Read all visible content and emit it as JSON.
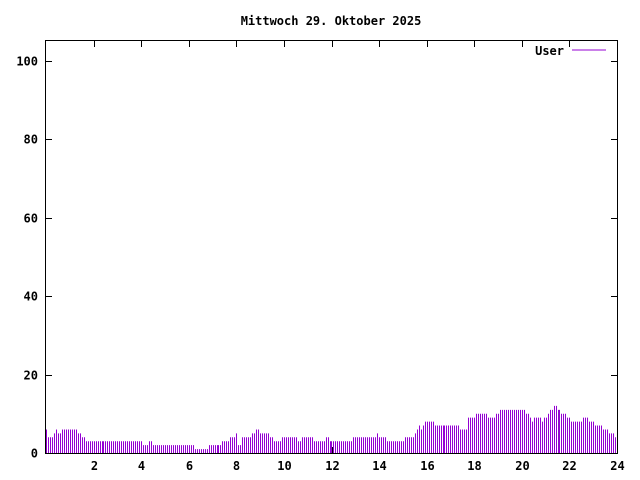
{
  "chart_data": {
    "type": "bar",
    "title": "Mittwoch 29. Oktober 2025",
    "xlabel": "",
    "ylabel": "",
    "xlim": [
      0,
      24
    ],
    "ylim": [
      0,
      105
    ],
    "x_ticks": [
      2,
      4,
      6,
      8,
      10,
      12,
      14,
      16,
      18,
      20,
      22,
      24
    ],
    "x_tick_labels": [
      "2",
      "4",
      "6",
      "8",
      "10",
      "12",
      "14",
      "16",
      "18",
      "20",
      "22",
      "24"
    ],
    "y_ticks": [
      0,
      20,
      40,
      60,
      80,
      100
    ],
    "y_tick_labels": [
      "0",
      "20",
      "40",
      "60",
      "80",
      "100"
    ],
    "grid": false,
    "legend_position": "top-right",
    "series": [
      {
        "name": "User",
        "color": "#9400d3",
        "interval_hours": 0.08333,
        "values": [
          6,
          4,
          4,
          4,
          5,
          6,
          5,
          5,
          6,
          6,
          6,
          6,
          6,
          6,
          6,
          6,
          5,
          5,
          4,
          4,
          3,
          3,
          3,
          3,
          3,
          3,
          3,
          3,
          3,
          3,
          3,
          3,
          3,
          3,
          3,
          3,
          3,
          3,
          3,
          3,
          3,
          3,
          3,
          3,
          3,
          3,
          3,
          3,
          3,
          2,
          2,
          2,
          3,
          3,
          2,
          2,
          2,
          2,
          2,
          2,
          2,
          2,
          2,
          2,
          2,
          2,
          2,
          2,
          2,
          2,
          2,
          2,
          2,
          2,
          2,
          1,
          1,
          1,
          1,
          1,
          1,
          1,
          2,
          2,
          2,
          2,
          2,
          2,
          2,
          3,
          3,
          3,
          3,
          4,
          4,
          4,
          5,
          2,
          2,
          4,
          4,
          4,
          4,
          4,
          5,
          5,
          6,
          6,
          5,
          5,
          5,
          5,
          5,
          4,
          4,
          3,
          3,
          3,
          3,
          4,
          4,
          4,
          4,
          4,
          4,
          4,
          4,
          3,
          3,
          4,
          4,
          4,
          4,
          4,
          4,
          3,
          3,
          3,
          3,
          3,
          3,
          4,
          4,
          3,
          3,
          3,
          3,
          3,
          3,
          3,
          3,
          3,
          3,
          3,
          3,
          4,
          4,
          4,
          4,
          4,
          4,
          4,
          4,
          4,
          4,
          4,
          4,
          5,
          4,
          4,
          4,
          4,
          3,
          3,
          3,
          3,
          3,
          3,
          3,
          3,
          3,
          4,
          4,
          4,
          4,
          4,
          5,
          6,
          7,
          6,
          7,
          8,
          8,
          8,
          8,
          8,
          7,
          7,
          7,
          7,
          7,
          7,
          7,
          7,
          7,
          7,
          7,
          7,
          7,
          6,
          6,
          6,
          6,
          9,
          9,
          9,
          9,
          10,
          10,
          10,
          10,
          10,
          10,
          9,
          9,
          9,
          9,
          10,
          10,
          11,
          11,
          11,
          11,
          11,
          11,
          11,
          11,
          11,
          11,
          11,
          11,
          11,
          10,
          10,
          9,
          8,
          9,
          9,
          9,
          9,
          8,
          9,
          9,
          10,
          11,
          11,
          12,
          12,
          11,
          11,
          10,
          10,
          10,
          9,
          9,
          8,
          8,
          8,
          8,
          8,
          8,
          9,
          9,
          9,
          8,
          8,
          8,
          7,
          7,
          7,
          7,
          6,
          6,
          6,
          5,
          5,
          5,
          4,
          4
        ]
      }
    ]
  }
}
